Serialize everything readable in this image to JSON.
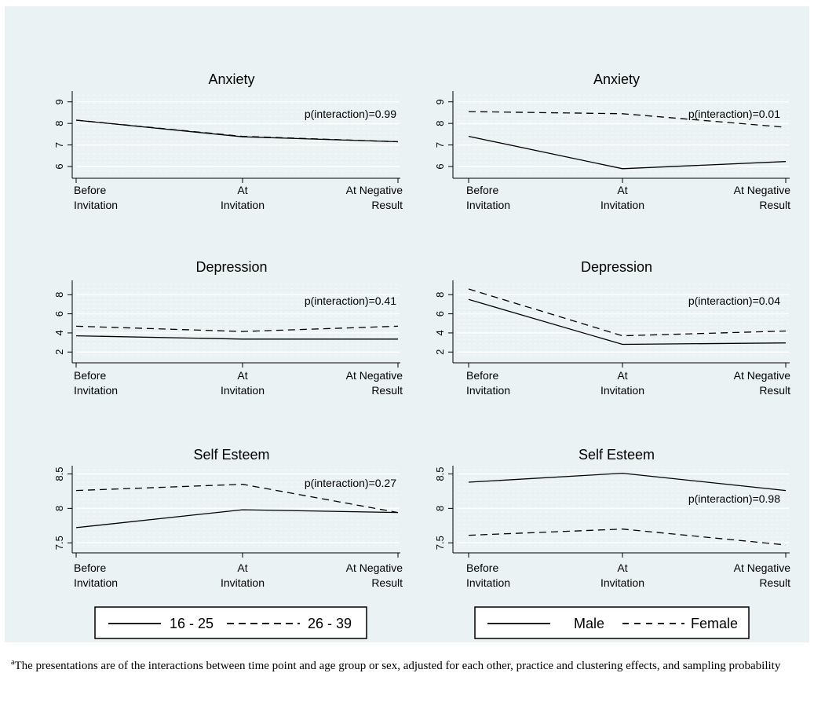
{
  "colors": {
    "background": "#ffffff",
    "plot_region": "#eaf2f3",
    "grid": "#ffffff",
    "line": "#000000"
  },
  "chart_data": [
    {
      "type": "line",
      "title": "Anxiety",
      "categories": [
        "Before Invitation",
        "At Invitation",
        "At Negative Result"
      ],
      "yticks": [
        6,
        7,
        8,
        9
      ],
      "ylim": [
        5.6,
        9.5
      ],
      "annotation": "p(interaction)=0.99",
      "series": [
        {
          "name": "16 - 25",
          "style": "solid",
          "values": [
            8.15,
            7.38,
            7.15
          ]
        },
        {
          "name": "26 - 39",
          "style": "dashed",
          "values": [
            8.15,
            7.4,
            7.15
          ]
        }
      ]
    },
    {
      "type": "line",
      "title": "Anxiety",
      "categories": [
        "Before Invitation",
        "At Invitation",
        "At Negative Result"
      ],
      "yticks": [
        6,
        7,
        8,
        9
      ],
      "ylim": [
        5.6,
        9.5
      ],
      "annotation": "p(interaction)=0.01",
      "series": [
        {
          "name": "Male",
          "style": "solid",
          "values": [
            7.4,
            5.9,
            6.23
          ]
        },
        {
          "name": "Female",
          "style": "dashed",
          "values": [
            8.55,
            8.45,
            7.82
          ]
        }
      ]
    },
    {
      "type": "line",
      "title": "Depression",
      "categories": [
        "Before Invitation",
        "At Invitation",
        "At Negative Result"
      ],
      "yticks": [
        2,
        4,
        6,
        8
      ],
      "ylim": [
        1.2,
        9.5
      ],
      "annotation": "p(interaction)=0.41",
      "series": [
        {
          "name": "16 - 25",
          "style": "solid",
          "values": [
            3.7,
            3.35,
            3.35
          ]
        },
        {
          "name": "26 - 39",
          "style": "dashed",
          "values": [
            4.7,
            4.15,
            4.7
          ]
        }
      ]
    },
    {
      "type": "line",
      "title": "Depression",
      "categories": [
        "Before Invitation",
        "At Invitation",
        "At Negative Result"
      ],
      "yticks": [
        2,
        4,
        6,
        8
      ],
      "ylim": [
        1.2,
        9.5
      ],
      "annotation": "p(interaction)=0.04",
      "series": [
        {
          "name": "Male",
          "style": "solid",
          "values": [
            7.5,
            2.8,
            2.95
          ]
        },
        {
          "name": "Female",
          "style": "dashed",
          "values": [
            8.6,
            3.7,
            4.2
          ]
        }
      ]
    },
    {
      "type": "line",
      "title": "Self Esteem",
      "categories": [
        "Before Invitation",
        "At Invitation",
        "At Negative Result"
      ],
      "yticks": [
        7.5,
        8,
        8.5
      ],
      "ylim": [
        7.4,
        8.62
      ],
      "annotation": "p(interaction)=0.27",
      "series": [
        {
          "name": "16 - 25",
          "style": "solid",
          "values": [
            7.72,
            7.98,
            7.94
          ]
        },
        {
          "name": "26 - 39",
          "style": "dashed",
          "values": [
            8.26,
            8.35,
            7.94
          ]
        }
      ]
    },
    {
      "type": "line",
      "title": "Self Esteem",
      "categories": [
        "Before Invitation",
        "At Invitation",
        "At Negative Result"
      ],
      "yticks": [
        7.5,
        8,
        8.5
      ],
      "ylim": [
        7.4,
        8.62
      ],
      "annotation": "p(interaction)=0.98",
      "series": [
        {
          "name": "Male",
          "style": "solid",
          "values": [
            8.38,
            8.51,
            8.26
          ]
        },
        {
          "name": "Female",
          "style": "dashed",
          "values": [
            7.61,
            7.7,
            7.47
          ]
        }
      ]
    }
  ],
  "legends": [
    {
      "entries": [
        {
          "label": "16 - 25",
          "style": "solid"
        },
        {
          "label": "26 - 39",
          "style": "dashed"
        }
      ]
    },
    {
      "entries": [
        {
          "label": "Male",
          "style": "solid"
        },
        {
          "label": "Female",
          "style": "dashed"
        }
      ]
    }
  ],
  "footnote": {
    "marker": "a",
    "text": "The presentations are of the interactions between time point and age group or sex, adjusted for each other, practice and clustering effects, and sampling probability"
  }
}
